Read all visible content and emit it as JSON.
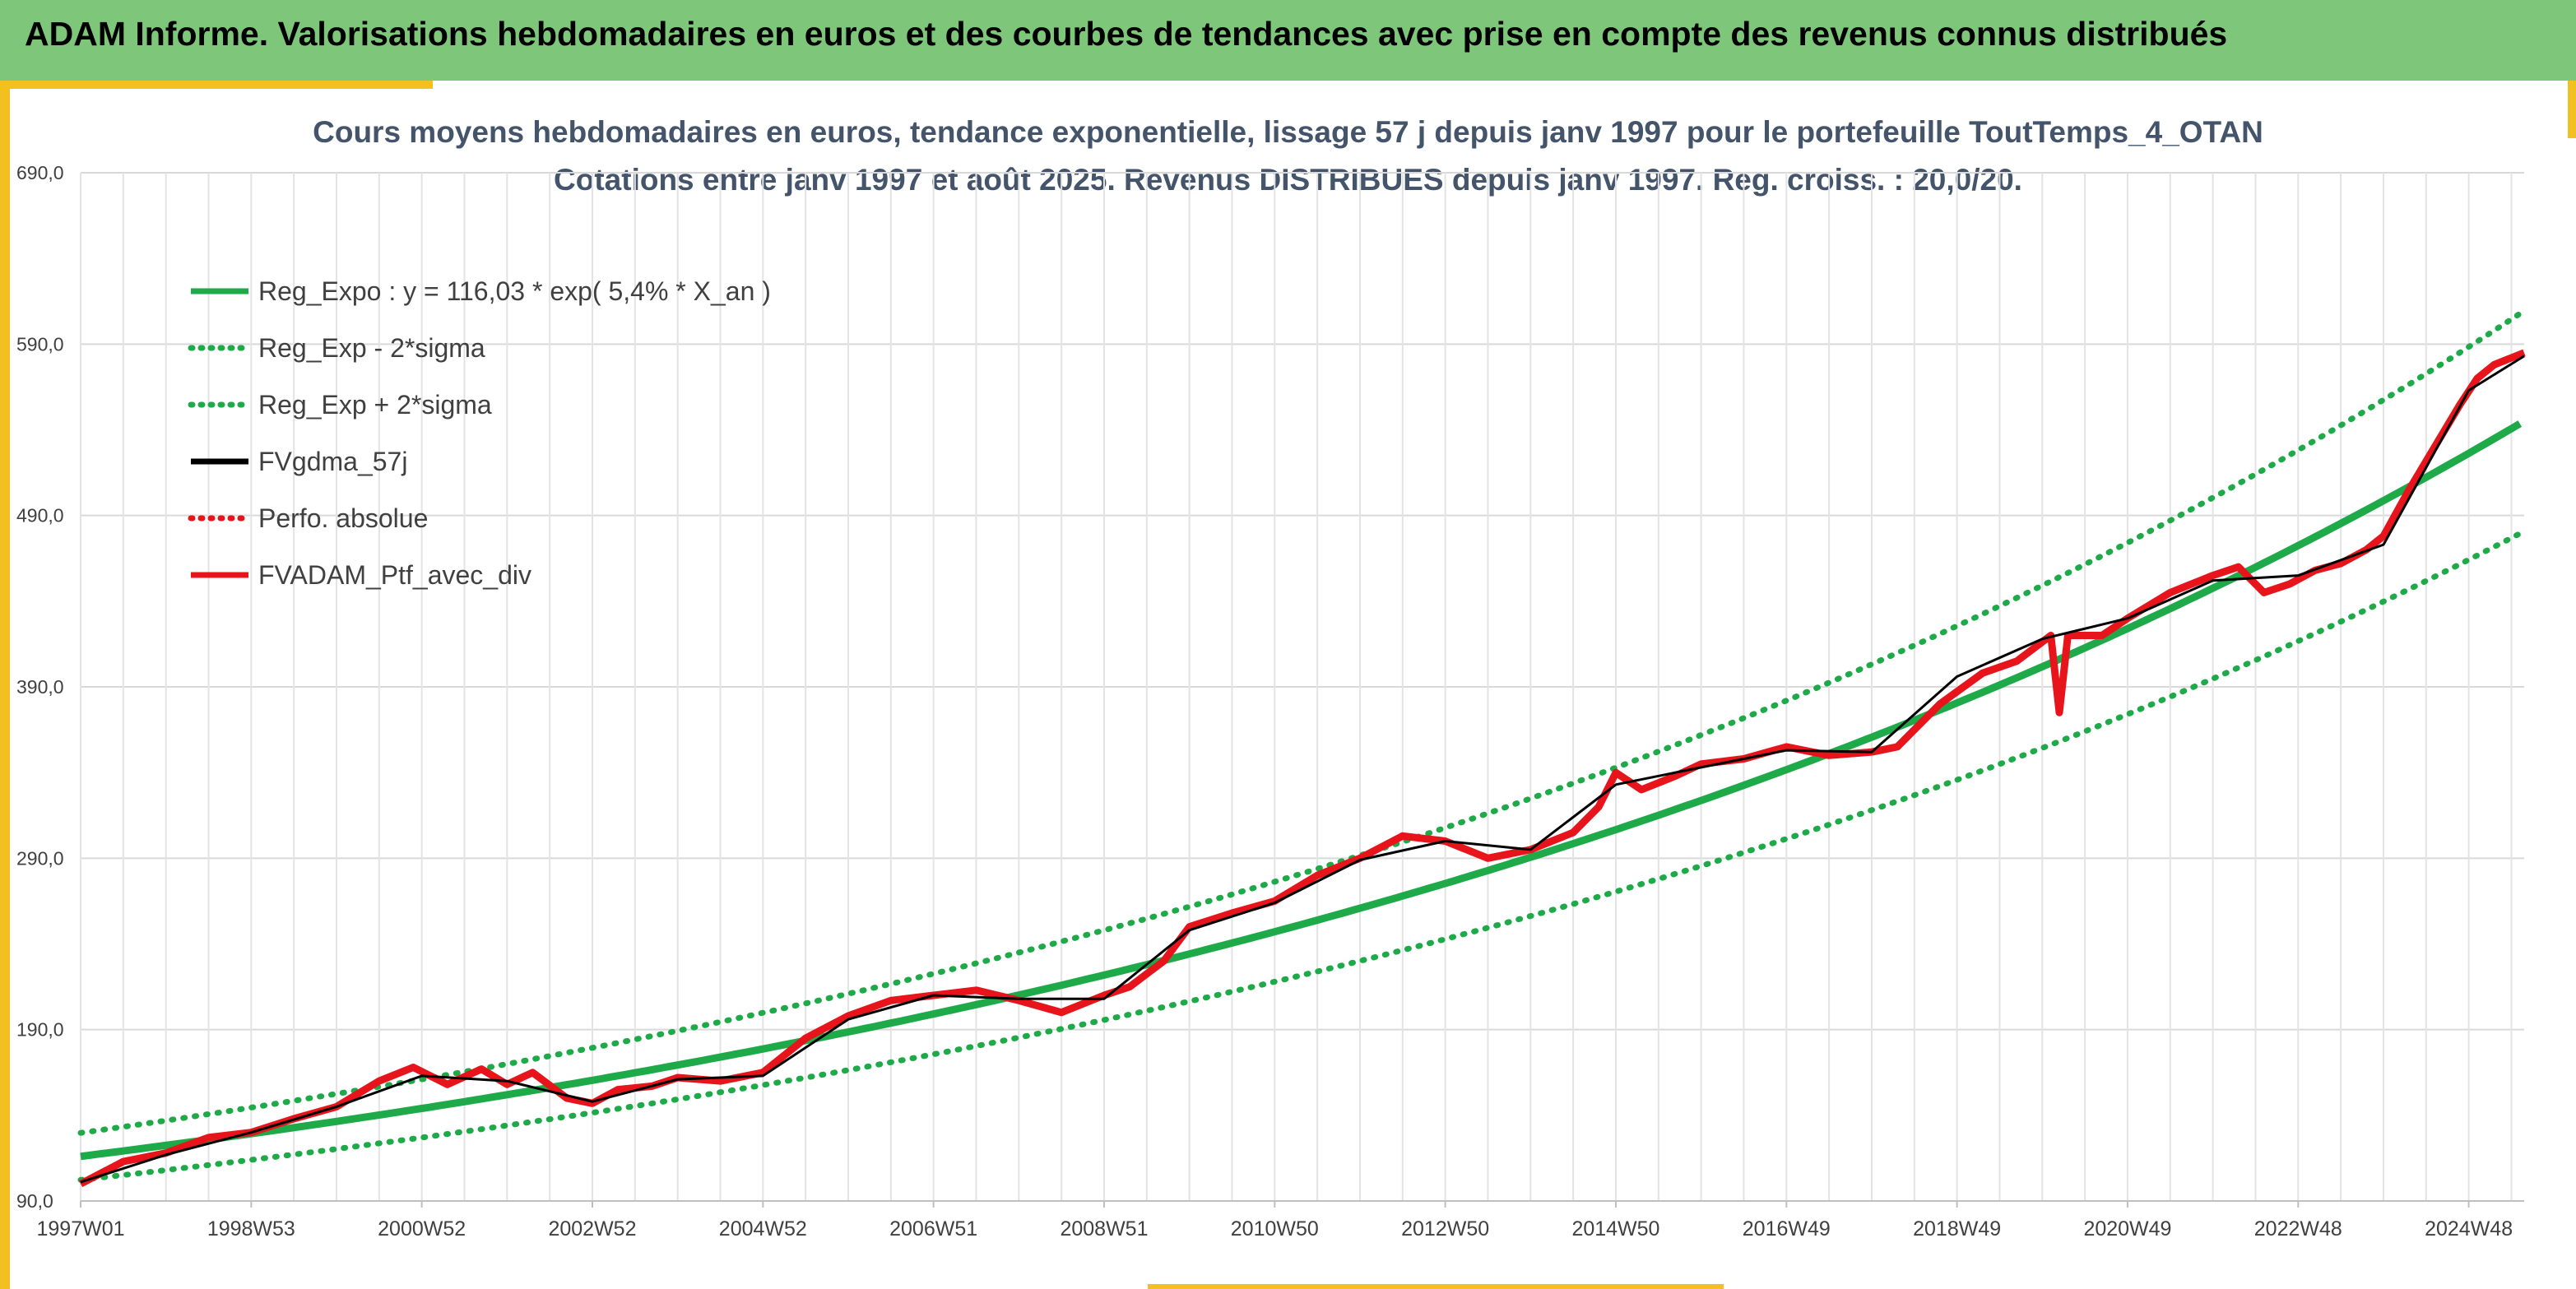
{
  "banner": {
    "title": "ADAM Informe. Valorisations hebdomadaires en euros et des courbes de tendances avec prise en compte des revenus connus distribués"
  },
  "colors": {
    "banner_bg": "#7ec77a",
    "accent": "#f2c020",
    "trend_green": "#1faa4a",
    "series_red": "#e8141c",
    "series_black": "#000000",
    "title_text": "#44546a"
  },
  "chart_data": {
    "type": "line",
    "title_line1": "Cours moyens hebdomadaires en euros, tendance exponentielle, lissage 57 j depuis janv 1997 pour le portefeuille ToutTemps_4_OTAN",
    "title_line2": "Cotations entre janv 1997 et août 2025. Revenus DISTRIBUES depuis janv 1997. Reg. croiss. : 20,0/20.",
    "xlabel": "",
    "ylabel": "",
    "ylim": [
      90,
      690
    ],
    "xlim": [
      1997.0,
      2025.65
    ],
    "grid": true,
    "legend_position": "top-left",
    "y_ticks": [
      "90,0",
      "190,0",
      "290,0",
      "390,0",
      "490,0",
      "590,0",
      "690,0"
    ],
    "y_tick_values": [
      90,
      190,
      290,
      390,
      490,
      590,
      690
    ],
    "x_tick_labels": [
      "1997W01",
      "1998W53",
      "2000W52",
      "2002W52",
      "2004W52",
      "2006W51",
      "2008W51",
      "2010W50",
      "2012W50",
      "2014W50",
      "2016W49",
      "2018W49",
      "2020W49",
      "2022W48",
      "2024W48"
    ],
    "x_tick_values": [
      1997.0,
      1999.0,
      2001.0,
      2003.0,
      2005.0,
      2007.0,
      2009.0,
      2011.0,
      2013.0,
      2015.0,
      2017.0,
      2019.0,
      2021.0,
      2023.0,
      2025.0
    ],
    "trend": {
      "a": 116.03,
      "rate": 0.054,
      "sigma_factor": 0.118
    },
    "legend": [
      {
        "label": "Reg_Expo : y = 116,03 * exp( 5,4% *  X_an )",
        "color": "#1faa4a",
        "style": "solid"
      },
      {
        "label": "Reg_Exp - 2*sigma",
        "color": "#1faa4a",
        "style": "dotted"
      },
      {
        "label": "Reg_Exp + 2*sigma",
        "color": "#1faa4a",
        "style": "dotted"
      },
      {
        "label": "FVgdma_57j",
        "color": "#000000",
        "style": "solid"
      },
      {
        "label": "Perfo. absolue",
        "color": "#e8141c",
        "style": "dotted"
      },
      {
        "label": "FVADAM_Ptf_avec_div",
        "color": "#e8141c",
        "style": "solid"
      }
    ],
    "series": [
      {
        "name": "FVADAM_Ptf_avec_div",
        "x": [
          1997.0,
          1997.5,
          1998.0,
          1998.5,
          1999.0,
          1999.5,
          2000.0,
          2000.5,
          2000.9,
          2001.3,
          2001.7,
          2002.0,
          2002.3,
          2002.7,
          2003.0,
          2003.3,
          2003.7,
          2004.0,
          2004.5,
          2005.0,
          2005.5,
          2006.0,
          2006.5,
          2007.0,
          2007.5,
          2008.0,
          2008.5,
          2009.0,
          2009.3,
          2009.7,
          2010.0,
          2010.5,
          2011.0,
          2011.5,
          2012.0,
          2012.5,
          2013.0,
          2013.5,
          2014.0,
          2014.5,
          2014.8,
          2015.0,
          2015.3,
          2015.7,
          2016.0,
          2016.5,
          2017.0,
          2017.5,
          2018.0,
          2018.3,
          2018.8,
          2019.3,
          2019.7,
          2020.1,
          2020.2,
          2020.3,
          2020.7,
          2021.0,
          2021.5,
          2022.0,
          2022.3,
          2022.6,
          2022.9,
          2023.2,
          2023.5,
          2023.8,
          2024.0,
          2024.3,
          2024.6,
          2024.9,
          2025.1,
          2025.3,
          2025.65
        ],
        "values": [
          100,
          113,
          118,
          127,
          130,
          138,
          145,
          160,
          168,
          158,
          167,
          158,
          165,
          150,
          147,
          155,
          157,
          162,
          160,
          165,
          185,
          198,
          207,
          210,
          213,
          207,
          200,
          210,
          215,
          230,
          250,
          258,
          265,
          280,
          290,
          303,
          300,
          290,
          295,
          305,
          320,
          340,
          330,
          338,
          345,
          348,
          355,
          350,
          352,
          355,
          380,
          398,
          405,
          420,
          375,
          420,
          420,
          430,
          445,
          455,
          460,
          445,
          450,
          458,
          462,
          470,
          478,
          505,
          530,
          555,
          570,
          578,
          585
        ]
      },
      {
        "name": "FVgdma_57j",
        "x": [
          1997.0,
          1998.0,
          1999.0,
          2000.0,
          2001.0,
          2002.0,
          2003.0,
          2004.0,
          2005.0,
          2006.0,
          2007.0,
          2008.0,
          2009.0,
          2010.0,
          2011.0,
          2012.0,
          2013.0,
          2014.0,
          2015.0,
          2016.0,
          2017.0,
          2018.0,
          2019.0,
          2020.0,
          2021.0,
          2022.0,
          2023.0,
          2024.0,
          2025.0,
          2025.65
        ],
        "values": [
          101,
          117,
          130,
          145,
          163,
          160,
          148,
          161,
          163,
          196,
          210,
          208,
          208,
          248,
          264,
          289,
          300,
          295,
          333,
          343,
          353,
          352,
          396,
          418,
          430,
          452,
          455,
          473,
          563,
          583
        ]
      }
    ]
  }
}
